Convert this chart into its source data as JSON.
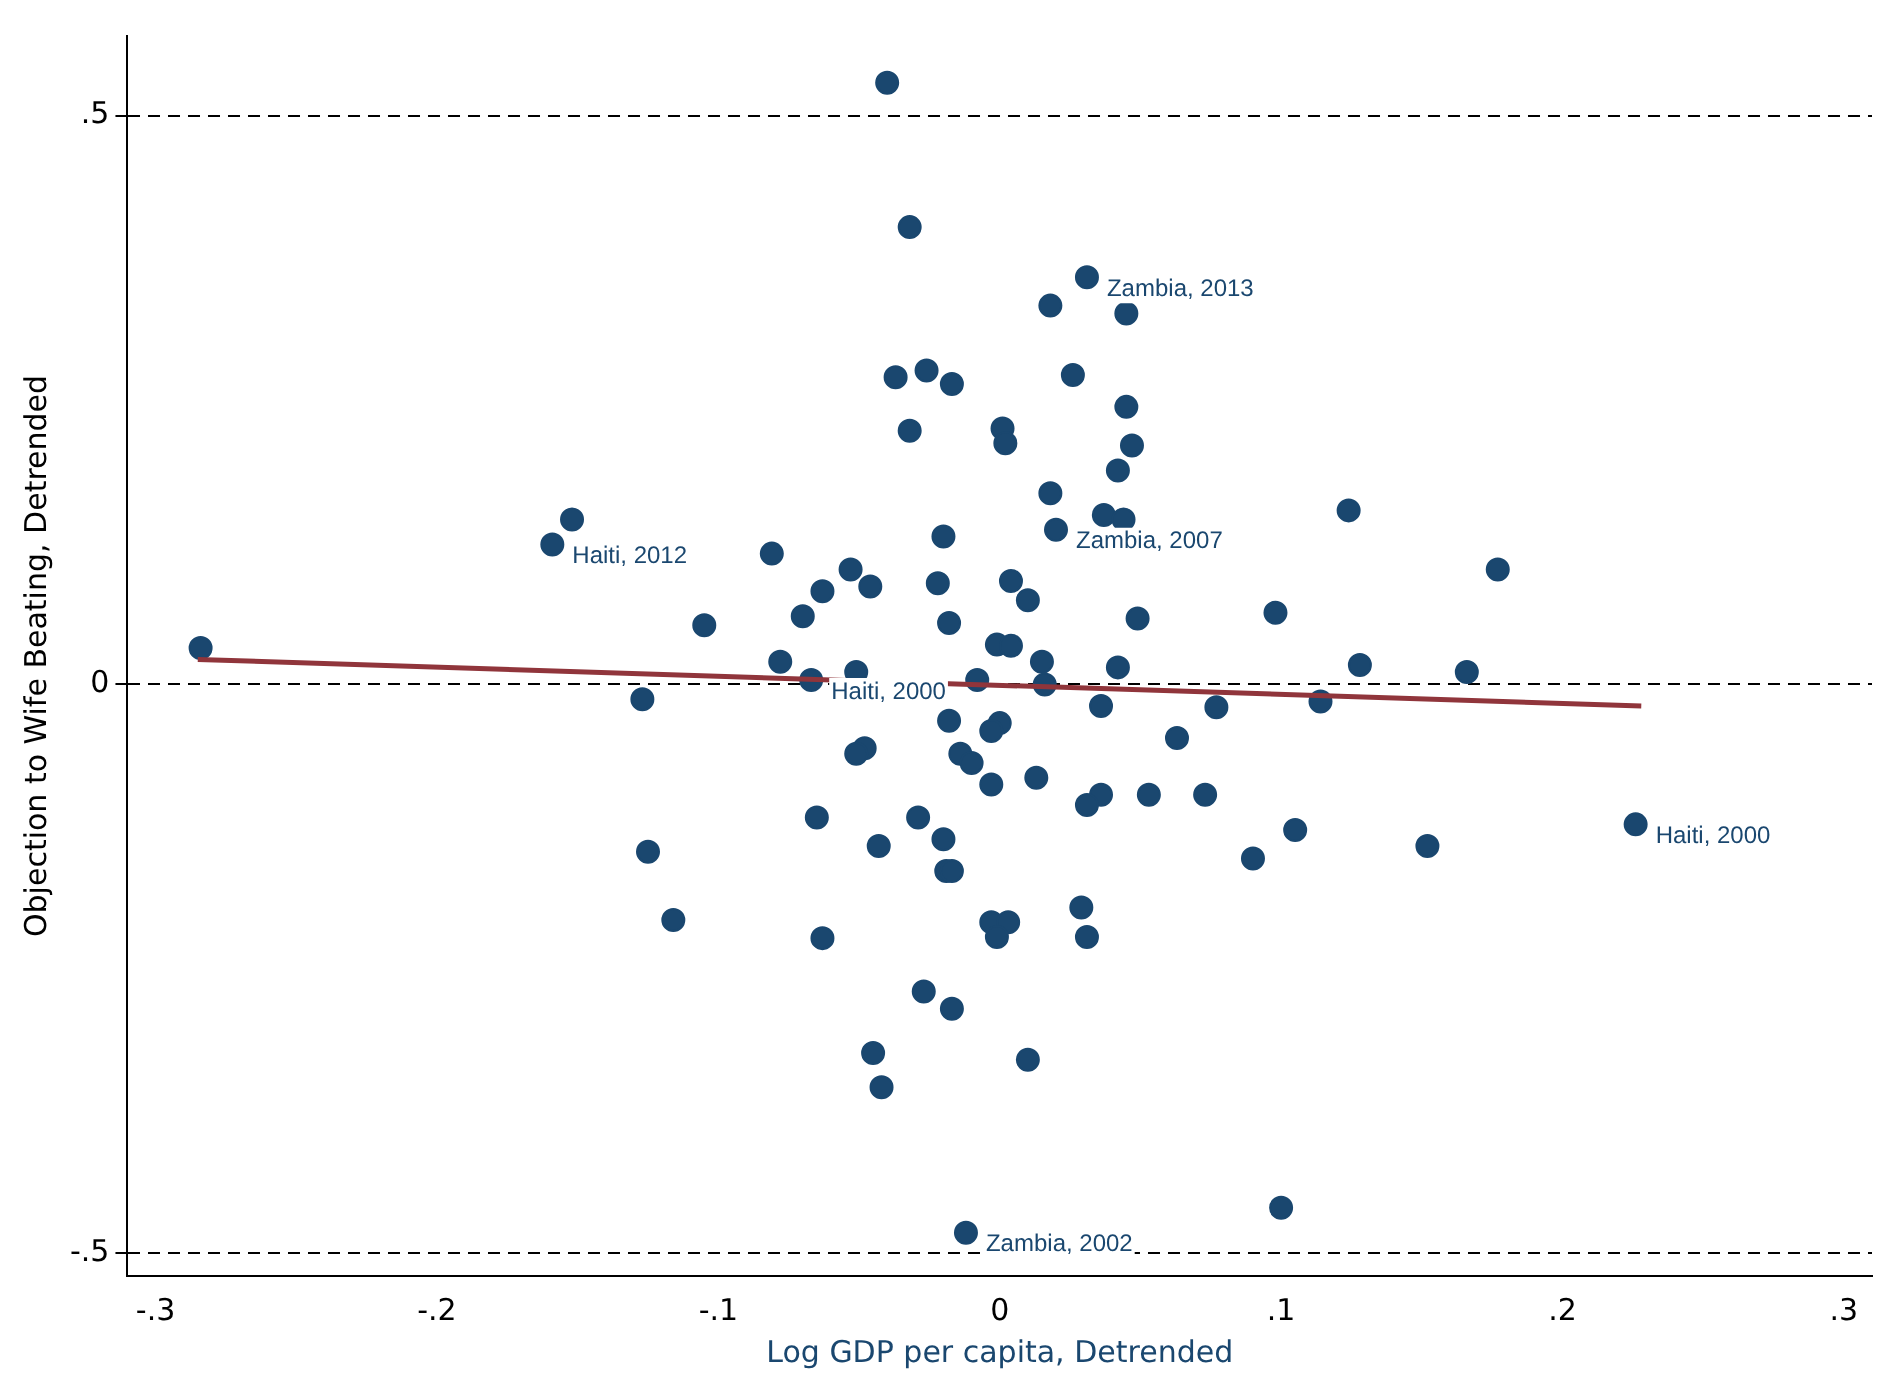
{
  "chart_data": {
    "type": "scatter",
    "xlabel": "Log GDP per capita, Detrended",
    "ylabel": "Objection to Wife Beating, Detrended",
    "xlim": [
      -0.31,
      0.31
    ],
    "ylim": [
      -0.52,
      0.57
    ],
    "xticks": [
      {
        "value": -0.3,
        "label": "-.3"
      },
      {
        "value": -0.2,
        "label": "-.2"
      },
      {
        "value": -0.1,
        "label": "-.1"
      },
      0,
      {
        "value": 0.1,
        "label": ".1"
      },
      {
        "value": 0.2,
        "label": ".2"
      },
      {
        "value": 0.3,
        "label": ".3"
      }
    ],
    "yticks": [
      {
        "value": -0.5,
        "label": "-.5"
      },
      0,
      {
        "value": 0.5,
        "label": ".5"
      }
    ],
    "grid": "y",
    "legend": false,
    "series": [
      {
        "marker": "circle",
        "color": "#1a476f",
        "x": [
          -0.04,
          -0.032,
          0.031,
          0.018,
          0.045,
          -0.037,
          -0.026,
          -0.017,
          0.026,
          0.045,
          -0.032,
          0.001,
          0.002,
          0.047,
          0.042,
          0.018,
          0.037,
          0.044,
          0.02,
          -0.02,
          -0.152,
          -0.159,
          -0.081,
          0.124,
          0.177,
          -0.053,
          -0.022,
          -0.046,
          -0.063,
          0.01,
          0.004,
          -0.105,
          -0.07,
          -0.018,
          0.049,
          0.098,
          -0.284,
          -0.001,
          0.004,
          -0.078,
          0.015,
          -0.051,
          0.042,
          0.128,
          0.166,
          -0.067,
          -0.008,
          0.016,
          -0.127,
          0.114,
          0.036,
          0.077,
          -0.018,
          0.0,
          -0.003,
          0.063,
          -0.048,
          -0.051,
          -0.014,
          -0.01,
          0.013,
          -0.003,
          0.036,
          0.053,
          0.073,
          0.031,
          -0.065,
          -0.029,
          0.105,
          0.226,
          -0.02,
          -0.043,
          0.152,
          -0.125,
          0.09,
          -0.019,
          -0.017,
          -0.116,
          0.029,
          -0.003,
          0.003,
          -0.001,
          -0.063,
          0.031,
          -0.027,
          -0.017,
          -0.045,
          0.01,
          -0.042,
          -0.012,
          0.1
        ],
        "values": [
          0.529,
          0.402,
          0.358,
          0.333,
          0.326,
          0.27,
          0.276,
          0.264,
          0.272,
          0.244,
          0.223,
          0.225,
          0.212,
          0.21,
          0.188,
          0.168,
          0.149,
          0.145,
          0.136,
          0.13,
          0.145,
          0.123,
          0.115,
          0.153,
          0.101,
          0.101,
          0.089,
          0.086,
          0.082,
          0.074,
          0.091,
          0.052,
          0.06,
          0.054,
          0.058,
          0.063,
          0.032,
          0.035,
          0.034,
          0.02,
          0.02,
          0.011,
          0.015,
          0.017,
          0.011,
          0.004,
          0.004,
          0.0,
          -0.013,
          -0.015,
          -0.019,
          -0.02,
          -0.032,
          -0.034,
          -0.041,
          -0.047,
          -0.056,
          -0.061,
          -0.061,
          -0.069,
          -0.082,
          -0.088,
          -0.097,
          -0.097,
          -0.097,
          -0.106,
          -0.117,
          -0.117,
          -0.128,
          -0.123,
          -0.136,
          -0.142,
          -0.142,
          -0.147,
          -0.153,
          -0.164,
          -0.164,
          -0.207,
          -0.196,
          -0.209,
          -0.209,
          -0.222,
          -0.223,
          -0.222,
          -0.27,
          -0.285,
          -0.324,
          -0.33,
          -0.354,
          -0.482,
          -0.46
        ]
      },
      {
        "type": "line",
        "color": "#90353b",
        "x": [
          -0.285,
          0.228
        ],
        "values": [
          0.022,
          -0.019
        ]
      }
    ],
    "annotations": [
      {
        "text": "Zambia, 2013",
        "x": 0.031,
        "y": 0.358
      },
      {
        "text": "Zambia, 2007",
        "x": 0.02,
        "y": 0.136
      },
      {
        "text": "Haiti, 2012",
        "x": -0.159,
        "y": 0.123
      },
      {
        "text": "Haiti, 2000",
        "x": -0.067,
        "y": 0.004
      },
      {
        "text": "Haiti, 2000",
        "x": 0.226,
        "y": -0.123
      },
      {
        "text": "Zambia, 2002",
        "x": -0.012,
        "y": -0.482
      }
    ]
  }
}
